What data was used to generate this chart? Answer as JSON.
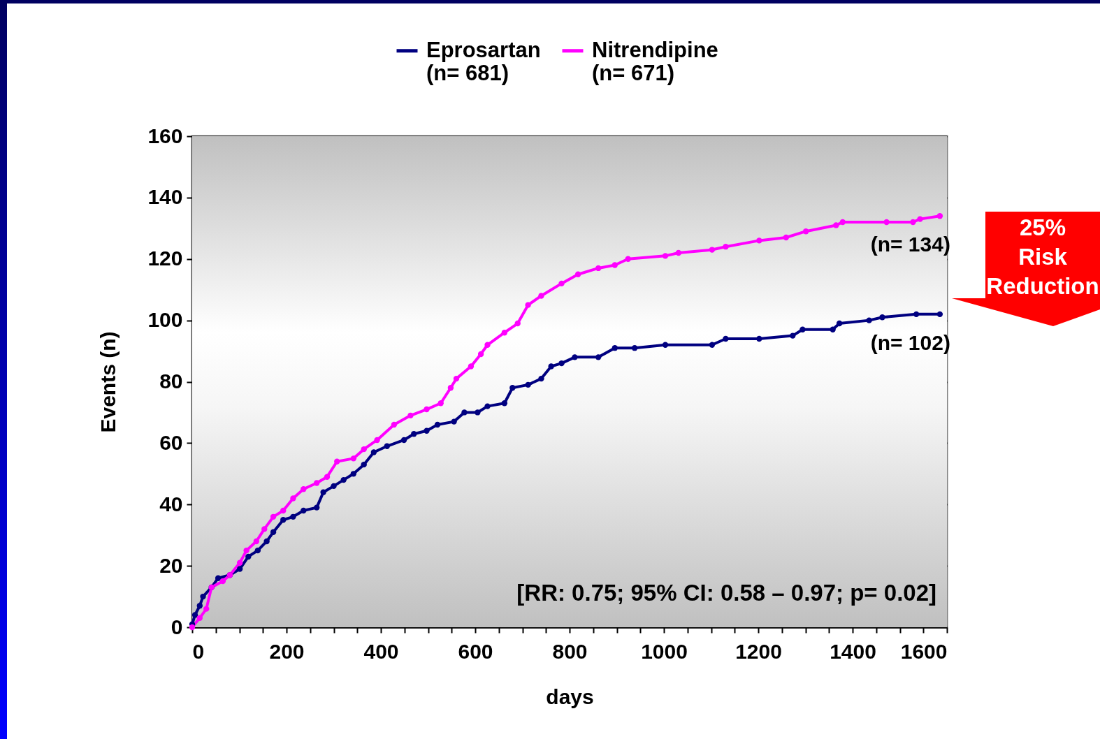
{
  "chart_data": {
    "type": "line",
    "xlabel": "days",
    "ylabel": "Events  (n)",
    "xlim": [
      0,
      1600
    ],
    "ylim": [
      0,
      160
    ],
    "xticks": [
      0,
      {
        "value": 50,
        "label": null
      },
      {
        "value": 100,
        "label": null
      },
      {
        "value": 150,
        "label": null
      },
      200,
      {
        "value": 250,
        "label": null
      },
      {
        "value": 300,
        "label": null
      },
      {
        "value": 350,
        "label": null
      },
      400,
      {
        "value": 450,
        "label": null
      },
      {
        "value": 500,
        "label": null
      },
      {
        "value": 550,
        "label": null
      },
      600,
      {
        "value": 650,
        "label": null
      },
      {
        "value": 700,
        "label": null
      },
      {
        "value": 750,
        "label": null
      },
      800,
      {
        "value": 850,
        "label": null
      },
      {
        "value": 900,
        "label": null
      },
      {
        "value": 950,
        "label": null
      },
      1000,
      {
        "value": 1050,
        "label": null
      },
      {
        "value": 1100,
        "label": null
      },
      {
        "value": 1150,
        "label": null
      },
      1200,
      {
        "value": 1250,
        "label": null
      },
      {
        "value": 1300,
        "label": null
      },
      {
        "value": 1350,
        "label": null
      },
      1400,
      {
        "value": 1450,
        "label": null
      },
      {
        "value": 1500,
        "label": null
      },
      {
        "value": 1550,
        "label": null
      },
      1600
    ],
    "yticks": [
      0,
      20,
      40,
      60,
      80,
      100,
      120,
      140,
      160
    ],
    "grid": "y",
    "legend": "top",
    "marker": "circle",
    "series": [
      {
        "name": "Eprosartan\n(n= 681)",
        "color": "#000080",
        "x": [
          0,
          6,
          16,
          23,
          41,
          55,
          80,
          101,
          119,
          139,
          158,
          172,
          193,
          214,
          236,
          264,
          278,
          300,
          321,
          342,
          364,
          385,
          413,
          449,
          470,
          497,
          520,
          555,
          577,
          605,
          626,
          662,
          679,
          712,
          740,
          761,
          783,
          811,
          861,
          896,
          938,
          1003,
          1102,
          1131,
          1202,
          1273,
          1294,
          1358,
          1372,
          1435,
          1463,
          1535,
          1585
        ],
        "values": [
          1,
          4,
          7,
          10,
          13,
          16,
          17,
          19,
          23,
          25,
          28,
          31,
          35,
          36,
          38,
          39,
          44,
          46,
          48,
          50,
          53,
          57,
          59,
          61,
          63,
          64,
          66,
          67,
          70,
          70,
          72,
          73,
          78,
          79,
          81,
          85,
          86,
          88,
          88,
          91,
          91,
          92,
          92,
          94,
          94,
          95,
          97,
          97,
          99,
          100,
          101,
          102,
          102
        ]
      },
      {
        "name": "Nitrendipine\n(n= 671)",
        "color": "#ff00ff",
        "x": [
          0,
          16,
          30,
          41,
          65,
          80,
          101,
          115,
          136,
          153,
          172,
          193,
          214,
          236,
          264,
          286,
          307,
          342,
          364,
          392,
          428,
          463,
          497,
          527,
          548,
          560,
          591,
          612,
          626,
          662,
          690,
          712,
          740,
          783,
          818,
          861,
          896,
          924,
          1003,
          1031,
          1102,
          1131,
          1202,
          1259,
          1301,
          1365,
          1379,
          1472,
          1528,
          1543,
          1585
        ],
        "values": [
          0,
          3,
          6,
          13,
          15,
          17,
          21,
          25,
          28,
          32,
          36,
          38,
          42,
          45,
          47,
          49,
          54,
          55,
          58,
          61,
          66,
          69,
          71,
          73,
          78,
          81,
          85,
          89,
          92,
          96,
          99,
          105,
          108,
          112,
          115,
          117,
          118,
          120,
          121,
          122,
          123,
          124,
          126,
          127,
          129,
          131,
          132,
          132,
          132,
          133,
          134
        ]
      }
    ],
    "annotations": [
      {
        "text": "(n= 134)",
        "x": 1585,
        "y": 134
      },
      {
        "text": "(n= 102)",
        "x": 1585,
        "y": 102
      },
      "[RR: 0.75; 95% CI:  0.58 – 0.97; p= 0.02]",
      "25% Risk Reduction"
    ]
  }
}
